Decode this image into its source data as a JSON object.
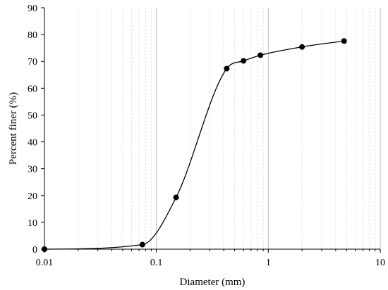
{
  "chart_data": {
    "type": "line",
    "title": "",
    "xlabel": "Diameter (mm)",
    "ylabel": "Percent finer (%)",
    "xscale": "log",
    "xlim": [
      0.01,
      10
    ],
    "ylim": [
      0,
      90
    ],
    "grid": "minor and major vertical gridlines on log x-axis",
    "x_ticks": [
      {
        "value": 0.01,
        "label": "0.01"
      },
      {
        "value": 0.1,
        "label": "0.1"
      },
      {
        "value": 1,
        "label": "1"
      },
      {
        "value": 10,
        "label": "10"
      }
    ],
    "y_ticks": [
      {
        "value": 0,
        "label": "0"
      },
      {
        "value": 10,
        "label": "10"
      },
      {
        "value": 20,
        "label": "20"
      },
      {
        "value": 30,
        "label": "30"
      },
      {
        "value": 40,
        "label": "40"
      },
      {
        "value": 50,
        "label": "50"
      },
      {
        "value": 60,
        "label": "60"
      },
      {
        "value": 70,
        "label": "70"
      },
      {
        "value": 80,
        "label": "80"
      },
      {
        "value": 90,
        "label": "90"
      }
    ],
    "series": [
      {
        "color": "#000000",
        "marker": "circle",
        "line": "smooth",
        "points": [
          {
            "x": 0.01,
            "y": 0
          },
          {
            "x": 0.075,
            "y": 1.7
          },
          {
            "x": 0.15,
            "y": 19.3
          },
          {
            "x": 0.425,
            "y": 67.3
          },
          {
            "x": 0.6,
            "y": 70.2
          },
          {
            "x": 0.85,
            "y": 72.3
          },
          {
            "x": 2.0,
            "y": 75.4
          },
          {
            "x": 4.75,
            "y": 77.6
          }
        ]
      }
    ]
  },
  "colors": {
    "axis": "#000000",
    "major_grid": "#c8c8c8",
    "minor_grid": "#e4e4e4",
    "series": "#000000"
  }
}
